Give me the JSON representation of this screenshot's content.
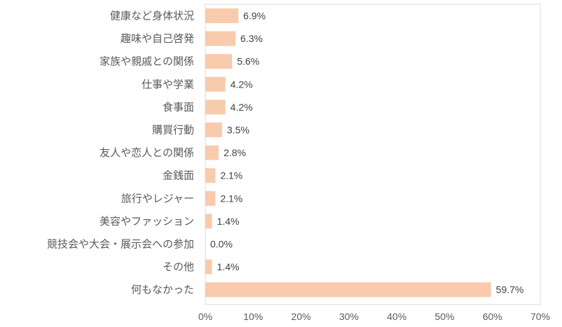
{
  "chart_data": {
    "type": "bar",
    "orientation": "horizontal",
    "categories": [
      "健康など身体状況",
      "趣味や自己啓発",
      "家族や親戚との関係",
      "仕事や学業",
      "食事面",
      "購買行動",
      "友人や恋人との関係",
      "金銭面",
      "旅行やレジャー",
      "美容やファッション",
      "競技会や大会・展示会への参加",
      "その他",
      "何もなかった"
    ],
    "values": [
      6.9,
      6.3,
      5.6,
      4.2,
      4.2,
      3.5,
      2.8,
      2.1,
      2.1,
      1.4,
      0.0,
      1.4,
      59.7
    ],
    "value_labels": [
      "6.9%",
      "6.3%",
      "5.6%",
      "4.2%",
      "4.2%",
      "3.5%",
      "2.8%",
      "2.1%",
      "2.1%",
      "1.4%",
      "0.0%",
      "1.4%",
      "59.7%"
    ],
    "xlim": [
      0,
      70
    ],
    "x_ticks": [
      "0%",
      "10%",
      "20%",
      "30%",
      "40%",
      "50%",
      "60%",
      "70%"
    ],
    "title": "",
    "xlabel": "",
    "ylabel": "",
    "grid": false,
    "bar_color": "#f8cbad",
    "frame_color": "#d9d9d9"
  }
}
